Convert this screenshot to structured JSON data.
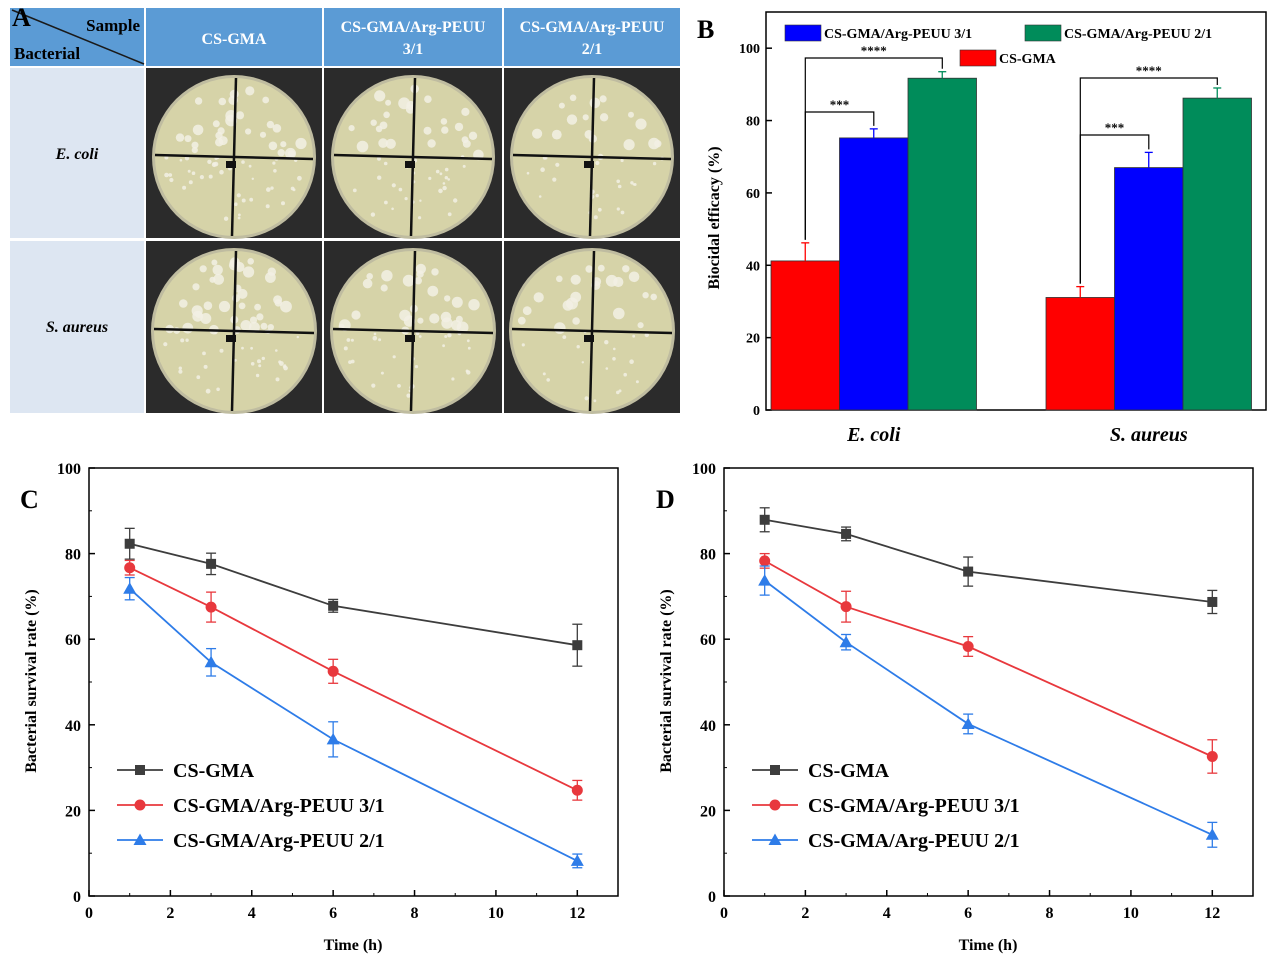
{
  "colors": {
    "header_blue": "#5b9bd5",
    "row_label_bg": "#dde6f2",
    "red": "#ff0000",
    "blue": "#0000ff",
    "green": "#008c5a",
    "gray": "#3d3d3d",
    "line_red": "#e8383d",
    "line_blue": "#2e7ce8",
    "plate_bg": "#2b2b2b",
    "agar": "#d6d3a8"
  },
  "panel_a": {
    "letter": "A",
    "corner_top": "Sample",
    "corner_bottom": "Bacterial",
    "columns": [
      "CS-GMA",
      "CS-GMA/Arg-PEUU 3/1",
      "CS-GMA/Arg-PEUU 2/1"
    ],
    "column_display": [
      [
        "CS-GMA"
      ],
      [
        "CS-GMA/Arg-PEUU",
        "3/1"
      ],
      [
        "CS-GMA/Arg-PEUU",
        "2/1"
      ]
    ],
    "rows": [
      "E. coli",
      "S. aureus"
    ]
  },
  "chart_data": [
    {
      "panel": "B",
      "type": "bar",
      "categories": [
        "E. coli",
        "S. aureus"
      ],
      "series": [
        {
          "name": "CS-GMA",
          "values": [
            41.2,
            31.1
          ],
          "errors": [
            5.0,
            3.0
          ]
        },
        {
          "name": "CS-GMA/Arg-PEUU 3/1",
          "values": [
            75.2,
            67.0
          ],
          "errors": [
            2.5,
            4.2
          ]
        },
        {
          "name": "CS-GMA/Arg-PEUU 2/1",
          "values": [
            91.7,
            86.2
          ],
          "errors": [
            1.8,
            2.8
          ]
        }
      ],
      "ylabel": "Biocidal efficacy (%)",
      "xlabel": "",
      "ylim": [
        0,
        110
      ],
      "yticks": [
        0,
        20,
        40,
        60,
        80,
        100
      ],
      "significance": [
        {
          "category": "E. coli",
          "from_series": 0,
          "to_series": 1,
          "label": "***"
        },
        {
          "category": "E. coli",
          "from_series": 0,
          "to_series": 2,
          "label": "****"
        },
        {
          "category": "S. aureus",
          "from_series": 0,
          "to_series": 1,
          "label": "***"
        },
        {
          "category": "S. aureus",
          "from_series": 0,
          "to_series": 2,
          "label": "****"
        }
      ]
    },
    {
      "panel": "C",
      "type": "line",
      "x": [
        1,
        3,
        6,
        12
      ],
      "series": [
        {
          "name": "CS-GMA",
          "marker": "square",
          "values": [
            82.3,
            77.6,
            67.8,
            58.6
          ],
          "errors": [
            3.6,
            2.5,
            1.5,
            4.9
          ]
        },
        {
          "name": "CS-GMA/Arg-PEUU 3/1",
          "marker": "circle",
          "values": [
            76.7,
            67.5,
            52.5,
            24.7
          ],
          "errors": [
            1.7,
            3.5,
            2.8,
            2.3
          ]
        },
        {
          "name": "CS-GMA/Arg-PEUU 2/1",
          "marker": "triangle",
          "values": [
            71.8,
            54.6,
            36.6,
            8.2
          ],
          "errors": [
            2.6,
            3.2,
            4.1,
            1.6
          ]
        }
      ],
      "xlabel": "Time (h)",
      "ylabel": "Bacterial survival rate (%)",
      "xlim": [
        0,
        13
      ],
      "ylim": [
        0,
        100
      ],
      "xticks": [
        0,
        2,
        4,
        6,
        8,
        10,
        12
      ],
      "yticks": [
        0,
        20,
        40,
        60,
        80,
        100
      ],
      "legend": "lower-left"
    },
    {
      "panel": "D",
      "type": "line",
      "x": [
        1,
        3,
        6,
        12
      ],
      "series": [
        {
          "name": "CS-GMA",
          "marker": "square",
          "values": [
            87.9,
            84.6,
            75.8,
            68.7
          ],
          "errors": [
            2.8,
            1.6,
            3.4,
            2.7
          ]
        },
        {
          "name": "CS-GMA/Arg-PEUU 3/1",
          "marker": "circle",
          "values": [
            78.3,
            67.6,
            58.3,
            32.6
          ],
          "errors": [
            1.7,
            3.6,
            2.3,
            3.9
          ]
        },
        {
          "name": "CS-GMA/Arg-PEUU 2/1",
          "marker": "triangle",
          "values": [
            73.7,
            59.3,
            40.2,
            14.3
          ],
          "errors": [
            3.4,
            1.8,
            2.3,
            2.9
          ]
        }
      ],
      "xlabel": "Time (h)",
      "ylabel": "Bacterial survival rate (%)",
      "xlim": [
        0,
        13
      ],
      "ylim": [
        0,
        100
      ],
      "xticks": [
        0,
        2,
        4,
        6,
        8,
        10,
        12
      ],
      "yticks": [
        0,
        20,
        40,
        60,
        80,
        100
      ],
      "legend": "lower-left"
    }
  ]
}
